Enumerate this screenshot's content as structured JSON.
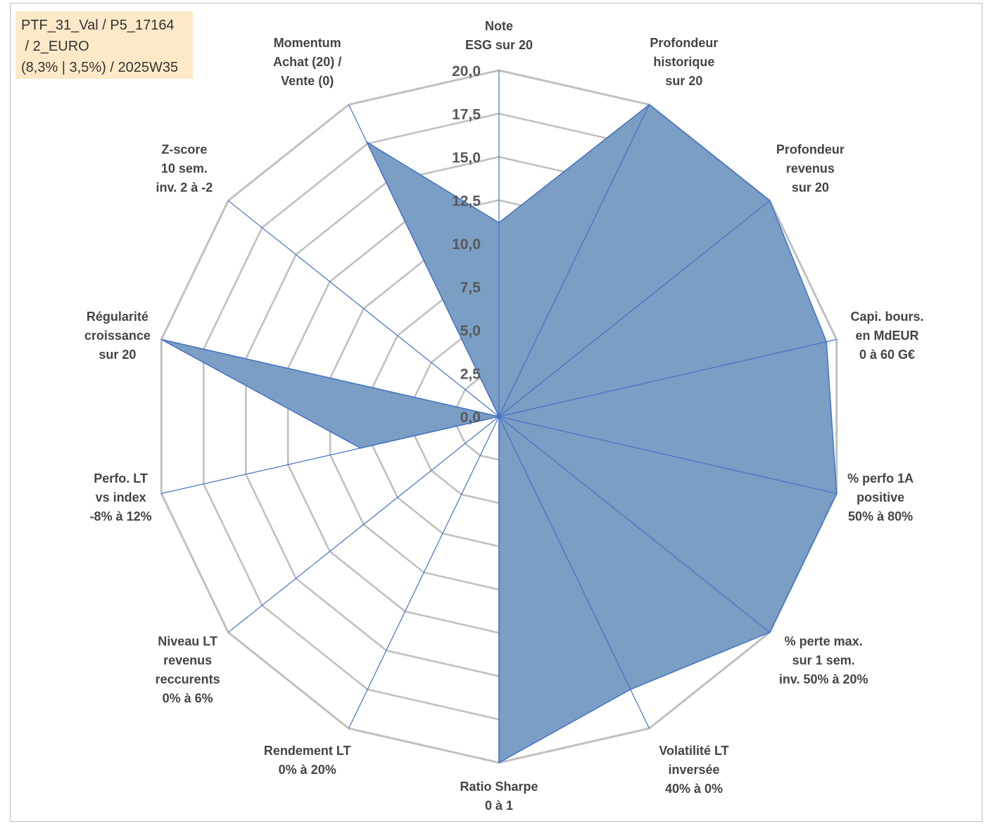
{
  "info_box": {
    "line1": "PTF_31_Val / P5_17164",
    "line2": " / 2_EURO",
    "line3": "(8,3% | 3,5%) / 2025W35"
  },
  "colors": {
    "fill": "#7a9ec4",
    "series_line": "#4472c4",
    "grid": "#c0c0c0",
    "axis_line": "#4472c4",
    "label": "#444444",
    "tick": "#595959",
    "info_box_bg": "#fde9c7"
  },
  "chart_data": {
    "type": "radar",
    "title": "",
    "rlim": [
      0,
      20
    ],
    "grid_step": 2.5,
    "tick_labels": [
      "0,0",
      "2,5",
      "5,0",
      "7,5",
      "10,0",
      "12,5",
      "15,0",
      "17,5",
      "20,0"
    ],
    "categories": [
      [
        "Note",
        "ESG sur 20"
      ],
      [
        "Profondeur",
        "historique",
        "sur 20"
      ],
      [
        "Profondeur",
        "revenus",
        "sur 20"
      ],
      [
        "Capi. bours.",
        "en MdEUR",
        "0 à 60 G€"
      ],
      [
        "% perfo 1A",
        "positive",
        "50% à 80%"
      ],
      [
        "% perte max.",
        "sur 1 sem.",
        "inv. 50% à 20%"
      ],
      [
        "Volatilité LT",
        "inversée",
        "40% à 0%"
      ],
      [
        "Ratio Sharpe",
        "0 à 1"
      ],
      [
        "Rendement LT",
        "0% à 20%"
      ],
      [
        "Niveau LT",
        "revenus",
        "reccurents",
        "0% à 6%"
      ],
      [
        "Perfo. LT",
        "vs index",
        "-8% à 12%"
      ],
      [
        "Régularité",
        "croissance",
        "sur 20"
      ],
      [
        "Z-score",
        "10 sem.",
        "inv. 2 à -2"
      ],
      [
        "Momentum",
        "Achat (20) /",
        "Vente (0)"
      ]
    ],
    "series": [
      {
        "values": [
          11.2,
          20,
          20,
          19.4,
          20,
          20,
          17.5,
          20,
          0,
          0,
          8.2,
          20,
          0,
          17.6
        ]
      }
    ],
    "grid": true,
    "legend": "none"
  }
}
